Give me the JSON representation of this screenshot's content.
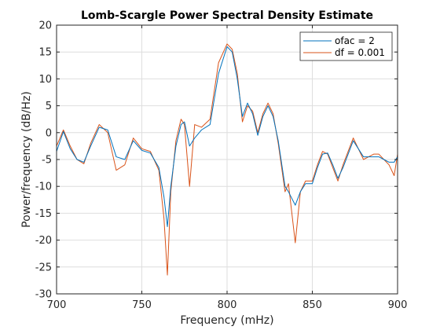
{
  "chart_data": {
    "type": "line",
    "title": "Lomb-Scargle Power Spectral Density Estimate",
    "xlabel": "Frequency (mHz)",
    "ylabel": "Power/frequency (dB/Hz)",
    "xlim": [
      700,
      900
    ],
    "ylim": [
      -30,
      20
    ],
    "xticks": [
      700,
      750,
      800,
      850,
      900
    ],
    "yticks": [
      -30,
      -25,
      -20,
      -15,
      -10,
      -5,
      0,
      5,
      10,
      15,
      20
    ],
    "grid": true,
    "legend_position": "top-right",
    "series": [
      {
        "name": "ofac = 2",
        "color": "#0072BD",
        "x": [
          700,
          704,
          708,
          712,
          716,
          720,
          725,
          730,
          735,
          740,
          745,
          750,
          755,
          760,
          763,
          765,
          767,
          770,
          773,
          775,
          778,
          781,
          785,
          790,
          795,
          800,
          803,
          806,
          809,
          812,
          815,
          818,
          821,
          824,
          827,
          830,
          834,
          836,
          840,
          843,
          846,
          850,
          853,
          856,
          859,
          862,
          865,
          868,
          871,
          874,
          877,
          880,
          883,
          886,
          889,
          892,
          895,
          898,
          900
        ],
        "values": [
          -3.5,
          0.2,
          -3.0,
          -5.0,
          -5.5,
          -2.5,
          1.0,
          0.5,
          -4.5,
          -5.0,
          -1.5,
          -3.3,
          -3.8,
          -6.5,
          -12.0,
          -17.5,
          -10.0,
          -2.5,
          1.5,
          2.0,
          -2.5,
          -1.0,
          0.5,
          1.5,
          11.0,
          16.0,
          15.0,
          10.0,
          3.0,
          5.5,
          3.5,
          -0.5,
          3.0,
          5.0,
          3.0,
          -1.5,
          -10.0,
          -11.0,
          -13.5,
          -11.0,
          -9.5,
          -9.5,
          -6.5,
          -4.0,
          -3.8,
          -6.0,
          -8.5,
          -6.5,
          -4.0,
          -1.5,
          -3.0,
          -4.5,
          -4.5,
          -4.5,
          -4.5,
          -5.0,
          -5.5,
          -5.5,
          -4.5
        ]
      },
      {
        "name": "df = 0.001",
        "color": "#D95319",
        "x": [
          700,
          704,
          708,
          712,
          716,
          720,
          725,
          730,
          735,
          740,
          745,
          750,
          755,
          760,
          763,
          765,
          767,
          770,
          773,
          775,
          778,
          781,
          785,
          790,
          795,
          800,
          803,
          806,
          809,
          812,
          815,
          818,
          821,
          824,
          827,
          830,
          834,
          836,
          840,
          843,
          846,
          850,
          853,
          856,
          859,
          862,
          865,
          868,
          871,
          874,
          877,
          880,
          883,
          886,
          889,
          892,
          895,
          898,
          900
        ],
        "values": [
          -2.5,
          0.5,
          -2.5,
          -5.0,
          -5.8,
          -2.0,
          1.5,
          0.0,
          -7.0,
          -6.0,
          -1.0,
          -3.0,
          -3.5,
          -7.0,
          -16.0,
          -26.5,
          -11.0,
          -1.5,
          2.5,
          1.5,
          -10.0,
          1.5,
          1.0,
          2.5,
          13.0,
          16.5,
          15.5,
          11.0,
          2.0,
          5.0,
          4.0,
          0.0,
          3.5,
          5.5,
          3.5,
          -2.0,
          -11.0,
          -9.5,
          -20.5,
          -11.0,
          -9.0,
          -9.0,
          -6.0,
          -3.5,
          -4.0,
          -6.5,
          -9.0,
          -6.0,
          -3.5,
          -1.0,
          -3.0,
          -5.0,
          -4.5,
          -4.0,
          -4.0,
          -5.0,
          -6.0,
          -8.0,
          -4.0
        ]
      }
    ]
  }
}
